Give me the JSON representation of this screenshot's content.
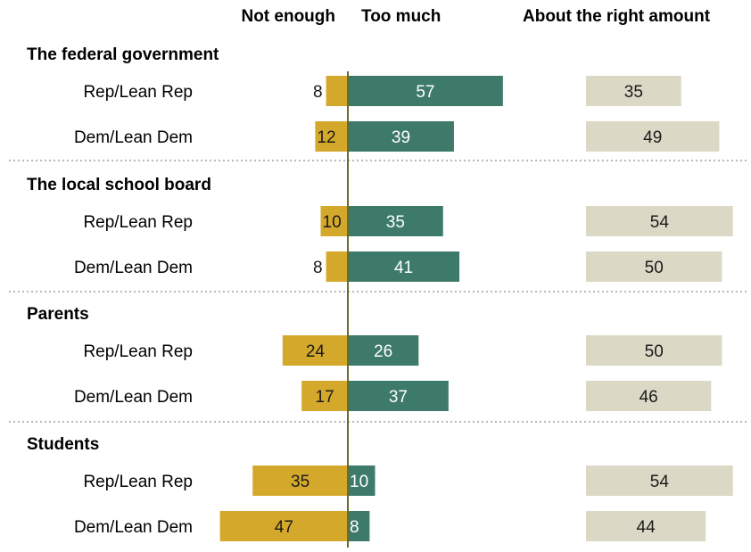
{
  "chart_data": {
    "type": "bar",
    "columns": {
      "not_enough": "Not enough",
      "too_much": "Too much",
      "about_right": "About the right amount"
    },
    "colors": {
      "not_enough": "#d4a92b",
      "too_much": "#3d7a6a",
      "about_right": "#dcd8c6",
      "center_line": "#6b6b2a",
      "separator": "#b8b8b8"
    },
    "groups": [
      {
        "title": "The federal government",
        "rows": [
          {
            "label": "Rep/Lean Rep",
            "not_enough": 8,
            "too_much": 57,
            "about_right": 35
          },
          {
            "label": "Dem/Lean Dem",
            "not_enough": 12,
            "too_much": 39,
            "about_right": 49
          }
        ]
      },
      {
        "title": "The local school board",
        "rows": [
          {
            "label": "Rep/Lean Rep",
            "not_enough": 10,
            "too_much": 35,
            "about_right": 54
          },
          {
            "label": "Dem/Lean Dem",
            "not_enough": 8,
            "too_much": 41,
            "about_right": 50
          }
        ]
      },
      {
        "title": "Parents",
        "rows": [
          {
            "label": "Rep/Lean Rep",
            "not_enough": 24,
            "too_much": 26,
            "about_right": 50
          },
          {
            "label": "Dem/Lean Dem",
            "not_enough": 17,
            "too_much": 37,
            "about_right": 46
          }
        ]
      },
      {
        "title": "Students",
        "rows": [
          {
            "label": "Rep/Lean Rep",
            "not_enough": 35,
            "too_much": 10,
            "about_right": 54
          },
          {
            "label": "Dem/Lean Dem",
            "not_enough": 47,
            "too_much": 8,
            "about_right": 44
          }
        ]
      }
    ]
  }
}
